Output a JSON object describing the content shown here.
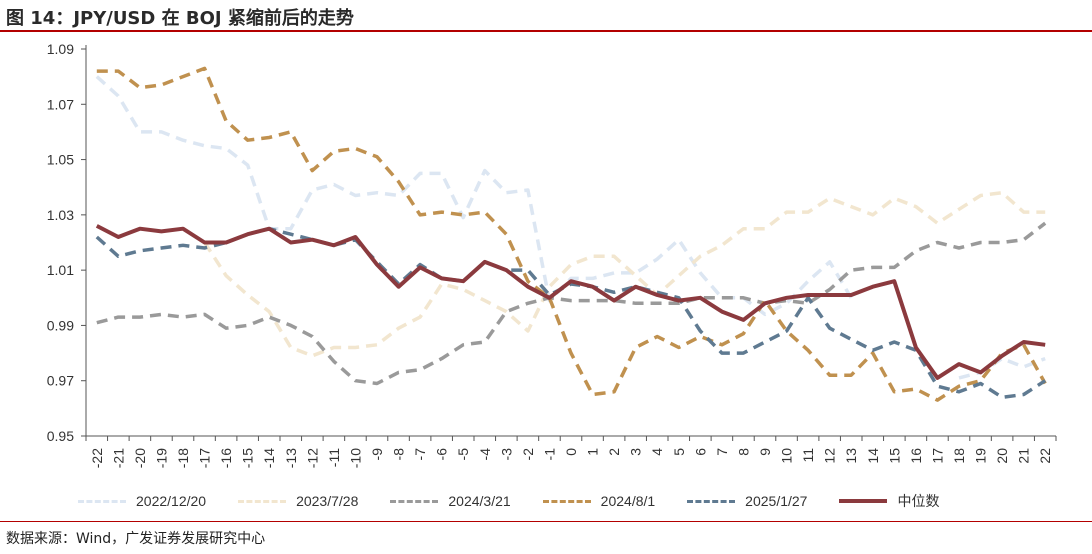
{
  "figure": {
    "title": "图 14：JPY/USD 在 BOJ 紧缩前后的走势",
    "source": "数据来源：Wind，广发证券发展研究中心"
  },
  "chart_data": {
    "type": "line",
    "title": "",
    "xlabel": "",
    "ylabel": "",
    "x": [
      -22,
      -21,
      -20,
      -19,
      -18,
      -17,
      -16,
      -15,
      -14,
      -13,
      -12,
      -11,
      -10,
      -9,
      -8,
      -7,
      -6,
      -5,
      -4,
      -3,
      -2,
      -1,
      0,
      1,
      2,
      3,
      4,
      5,
      6,
      7,
      8,
      9,
      10,
      11,
      12,
      13,
      14,
      15,
      16,
      17,
      18,
      19,
      20,
      21,
      22
    ],
    "ylim": [
      0.95,
      1.09
    ],
    "yticks": [
      0.95,
      0.97,
      0.99,
      1.01,
      1.03,
      1.05,
      1.07,
      1.09
    ],
    "ytick_labels": [
      "0.95",
      "0.97",
      "0.99",
      "1.01",
      "1.03",
      "1.05",
      "1.07",
      "1.09"
    ],
    "grid": false,
    "legend_position": "bottom",
    "series": [
      {
        "name": "2022/12/20",
        "style": "dashed",
        "color": "#dce6f2",
        "values": [
          1.08,
          1.073,
          1.06,
          1.06,
          1.057,
          1.055,
          1.054,
          1.048,
          1.025,
          1.025,
          1.039,
          1.041,
          1.037,
          1.038,
          1.037,
          1.045,
          1.045,
          1.029,
          1.046,
          1.038,
          1.039,
          0.999,
          1.007,
          1.007,
          1.009,
          1.009,
          1.014,
          1.021,
          1.009,
          1.0,
          1.0,
          0.994,
          0.998,
          1.006,
          1.013,
          1.0,
          null,
          null,
          null,
          null,
          0.971,
          0.973,
          0.978,
          0.975,
          0.978
        ]
      },
      {
        "name": "2023/7/28",
        "style": "dashed",
        "color": "#f2e6cf",
        "values": [
          null,
          null,
          null,
          null,
          null,
          1.02,
          1.008,
          1.001,
          0.995,
          0.982,
          0.979,
          0.982,
          0.982,
          0.983,
          0.989,
          0.993,
          1.005,
          1.003,
          0.999,
          0.995,
          0.988,
          1.004,
          1.012,
          1.015,
          1.015,
          1.008,
          1.001,
          1.008,
          1.015,
          1.019,
          1.025,
          1.025,
          1.031,
          1.031,
          1.036,
          1.033,
          1.03,
          1.036,
          1.033,
          1.027,
          1.032,
          1.037,
          1.038,
          1.031,
          1.031
        ]
      },
      {
        "name": "2024/3/21",
        "style": "dashed",
        "color": "#9a9a9a",
        "values": [
          0.991,
          0.993,
          0.993,
          0.994,
          0.993,
          0.994,
          0.989,
          0.99,
          0.993,
          0.99,
          0.986,
          0.977,
          0.97,
          0.969,
          0.973,
          0.974,
          0.978,
          0.983,
          0.984,
          0.995,
          0.998,
          1.0,
          0.999,
          0.999,
          0.999,
          0.998,
          0.998,
          0.998,
          1.0,
          1.0,
          1.0,
          0.998,
          0.999,
          0.998,
          1.003,
          1.01,
          1.011,
          1.011,
          1.017,
          1.02,
          1.018,
          1.02,
          1.02,
          1.021,
          1.027
        ]
      },
      {
        "name": "2024/8/1",
        "style": "dashed",
        "color": "#c0914f",
        "values": [
          1.082,
          1.082,
          1.076,
          1.077,
          1.08,
          1.083,
          1.064,
          1.057,
          1.058,
          1.06,
          1.046,
          1.053,
          1.054,
          1.051,
          1.042,
          1.03,
          1.031,
          1.03,
          1.031,
          1.023,
          1.006,
          1.0,
          0.98,
          0.965,
          0.966,
          0.982,
          0.986,
          0.982,
          0.986,
          0.983,
          0.987,
          0.999,
          0.988,
          0.981,
          0.972,
          0.972,
          0.98,
          0.966,
          0.967,
          0.963,
          0.968,
          0.97,
          0.98,
          0.983,
          0.969
        ]
      },
      {
        "name": "2025/1/27",
        "style": "dashed",
        "color": "#5f7a91",
        "values": [
          1.022,
          1.015,
          1.017,
          1.018,
          1.019,
          1.018,
          1.02,
          1.023,
          1.025,
          1.023,
          1.021,
          1.019,
          1.021,
          1.013,
          1.005,
          1.012,
          1.007,
          1.006,
          1.013,
          1.01,
          1.01,
          1.001,
          1.005,
          1.004,
          1.002,
          1.004,
          1.002,
          1.0,
          0.988,
          0.98,
          0.98,
          0.984,
          0.988,
          1.0,
          0.989,
          0.985,
          0.981,
          0.984,
          0.981,
          0.968,
          0.966,
          0.969,
          0.964,
          0.965,
          0.97
        ]
      },
      {
        "name": "中位数",
        "style": "solid",
        "color": "#8b3a3e",
        "values": [
          1.026,
          1.022,
          1.025,
          1.024,
          1.025,
          1.02,
          1.02,
          1.023,
          1.025,
          1.02,
          1.021,
          1.019,
          1.022,
          1.012,
          1.004,
          1.011,
          1.007,
          1.006,
          1.013,
          1.01,
          1.004,
          1.0,
          1.006,
          1.004,
          0.999,
          1.004,
          1.001,
          0.999,
          1.0,
          0.995,
          0.992,
          0.998,
          1.0,
          1.001,
          1.001,
          1.001,
          1.004,
          1.006,
          0.982,
          0.971,
          0.976,
          0.973,
          0.979,
          0.984,
          0.983
        ]
      }
    ]
  }
}
